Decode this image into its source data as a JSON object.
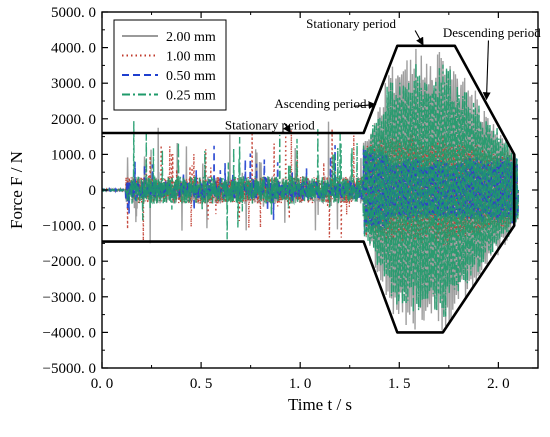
{
  "chart_data": {
    "type": "line",
    "xlabel": "Time t / s",
    "ylabel": "Force F / N",
    "xlim": [
      0,
      2.2
    ],
    "ylim": [
      -5000,
      5000
    ],
    "xticks": [
      0.0,
      0.5,
      1.0,
      1.5,
      2.0
    ],
    "xtick_labels": [
      "0. 0",
      "0. 5",
      "1. 0",
      "1. 5",
      "2. 0"
    ],
    "yticks": [
      5000,
      4000,
      3000,
      2000,
      1000,
      0,
      -1000,
      -2000,
      -3000,
      -4000,
      -5000
    ],
    "ytick_labels": [
      "5000. 0",
      "4000. 0",
      "3000. 0",
      "2000. 0",
      "1000. 0",
      "0",
      "−1000. 0",
      "−2000. 0",
      "−3000. 0",
      "−4000. 0",
      "−5000. 0"
    ],
    "grid": false,
    "legend_position": "top-left",
    "series": [
      {
        "name": "2.00 mm",
        "color": "#9a9a9a",
        "dash": "solid",
        "amplitude": 4000
      },
      {
        "name": "1.00 mm",
        "color": "#c0392b",
        "dash": "dotted",
        "amplitude": 1600
      },
      {
        "name": "0.50 mm",
        "color": "#1f3fcf",
        "dash": "dashed",
        "amplitude": 900
      },
      {
        "name": "0.25 mm",
        "color": "#1e9a6a",
        "dash": "dashdot",
        "amplitude": 3600
      }
    ],
    "envelope": {
      "points": [
        [
          0.0,
          1600
        ],
        [
          1.32,
          1600
        ],
        [
          1.49,
          4050
        ],
        [
          1.78,
          4050
        ],
        [
          2.08,
          1000
        ],
        [
          2.08,
          -1000
        ],
        [
          1.72,
          -4000
        ],
        [
          1.49,
          -4000
        ],
        [
          1.32,
          -1450
        ],
        [
          0.0,
          -1450
        ]
      ]
    },
    "annotations": [
      {
        "label": "Stationary period",
        "text_at": [
          0.62,
          1700
        ],
        "arrow_from": [
          0.92,
          1880
        ],
        "arrow_to": [
          0.95,
          1620
        ]
      },
      {
        "label": "Ascending period",
        "text_at": [
          0.87,
          2300
        ],
        "arrow_from": [
          1.27,
          2350
        ],
        "arrow_to": [
          1.38,
          2400
        ]
      },
      {
        "label": "Stationary period",
        "text_at": [
          1.03,
          4550
        ],
        "arrow_from": [
          1.58,
          4480
        ],
        "arrow_to": [
          1.62,
          4080
        ]
      },
      {
        "label": "Descending period",
        "text_at": [
          1.72,
          4300
        ],
        "arrow_from": [
          1.95,
          4200
        ],
        "arrow_to": [
          1.94,
          2550
        ]
      }
    ]
  }
}
